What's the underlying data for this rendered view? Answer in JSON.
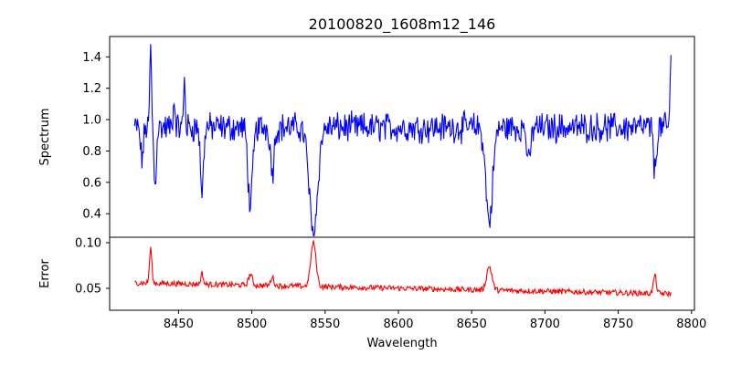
{
  "chart_data": [
    {
      "type": "line",
      "title": "20100820_1608m12_146",
      "xlabel": "",
      "ylabel": "Spectrum",
      "xlim": [
        8403,
        8802
      ],
      "ylim": [
        0.25,
        1.53
      ],
      "xticks": [],
      "yticks": [
        0.4,
        0.6,
        0.8,
        1.0,
        1.2,
        1.4
      ],
      "ytick_labels": [
        "0.4",
        "0.6",
        "0.8",
        "1.0",
        "1.2",
        "1.4"
      ],
      "grid": false,
      "series": [
        {
          "color": "#0000ff",
          "x_range": [
            8420,
            8786
          ],
          "continuum": 0.95,
          "noise": 0.075,
          "features": [
            {
              "center": 8425,
              "depth": 0.2,
              "width": 1.0
            },
            {
              "center": 8431,
              "depth": -0.5,
              "width": 0.6
            },
            {
              "center": 8434,
              "depth": 0.38,
              "width": 0.8
            },
            {
              "center": 8447,
              "depth": -0.15,
              "width": 0.8
            },
            {
              "center": 8454,
              "depth": -0.3,
              "width": 0.6
            },
            {
              "center": 8466,
              "depth": 0.42,
              "width": 1.0
            },
            {
              "center": 8499,
              "depth": 0.5,
              "width": 1.6
            },
            {
              "center": 8514,
              "depth": 0.28,
              "width": 1.2
            },
            {
              "center": 8542,
              "depth": 0.68,
              "width": 2.8
            },
            {
              "center": 8662,
              "depth": 0.6,
              "width": 2.3
            },
            {
              "center": 8689,
              "depth": 0.24,
              "width": 1.2
            },
            {
              "center": 8775,
              "depth": 0.28,
              "width": 1.0
            },
            {
              "center": 8786,
              "depth": -0.45,
              "width": 0.6
            }
          ]
        }
      ]
    },
    {
      "type": "line",
      "title": "",
      "xlabel": "Wavelength",
      "ylabel": "Error",
      "xlim": [
        8403,
        8802
      ],
      "ylim": [
        0.026,
        0.106
      ],
      "xticks": [
        8450,
        8500,
        8550,
        8600,
        8650,
        8700,
        8750,
        8800
      ],
      "xtick_labels": [
        "8450",
        "8500",
        "8550",
        "8600",
        "8650",
        "8700",
        "8750",
        "8800"
      ],
      "yticks": [
        0.05,
        0.1
      ],
      "ytick_labels": [
        "0.05",
        "0.10"
      ],
      "grid": false,
      "series": [
        {
          "color": "#ff0000",
          "x_range": [
            8420,
            8786
          ],
          "baseline_start": 0.056,
          "baseline_end": 0.044,
          "noise": 0.003,
          "features": [
            {
              "center": 8431,
              "height": 0.038,
              "width": 0.8
            },
            {
              "center": 8466,
              "height": 0.012,
              "width": 0.8
            },
            {
              "center": 8499,
              "height": 0.012,
              "width": 1.3
            },
            {
              "center": 8514,
              "height": 0.01,
              "width": 1.0
            },
            {
              "center": 8542,
              "height": 0.048,
              "width": 1.8
            },
            {
              "center": 8662,
              "height": 0.026,
              "width": 1.8
            },
            {
              "center": 8775,
              "height": 0.02,
              "width": 1.0
            }
          ]
        }
      ]
    }
  ]
}
